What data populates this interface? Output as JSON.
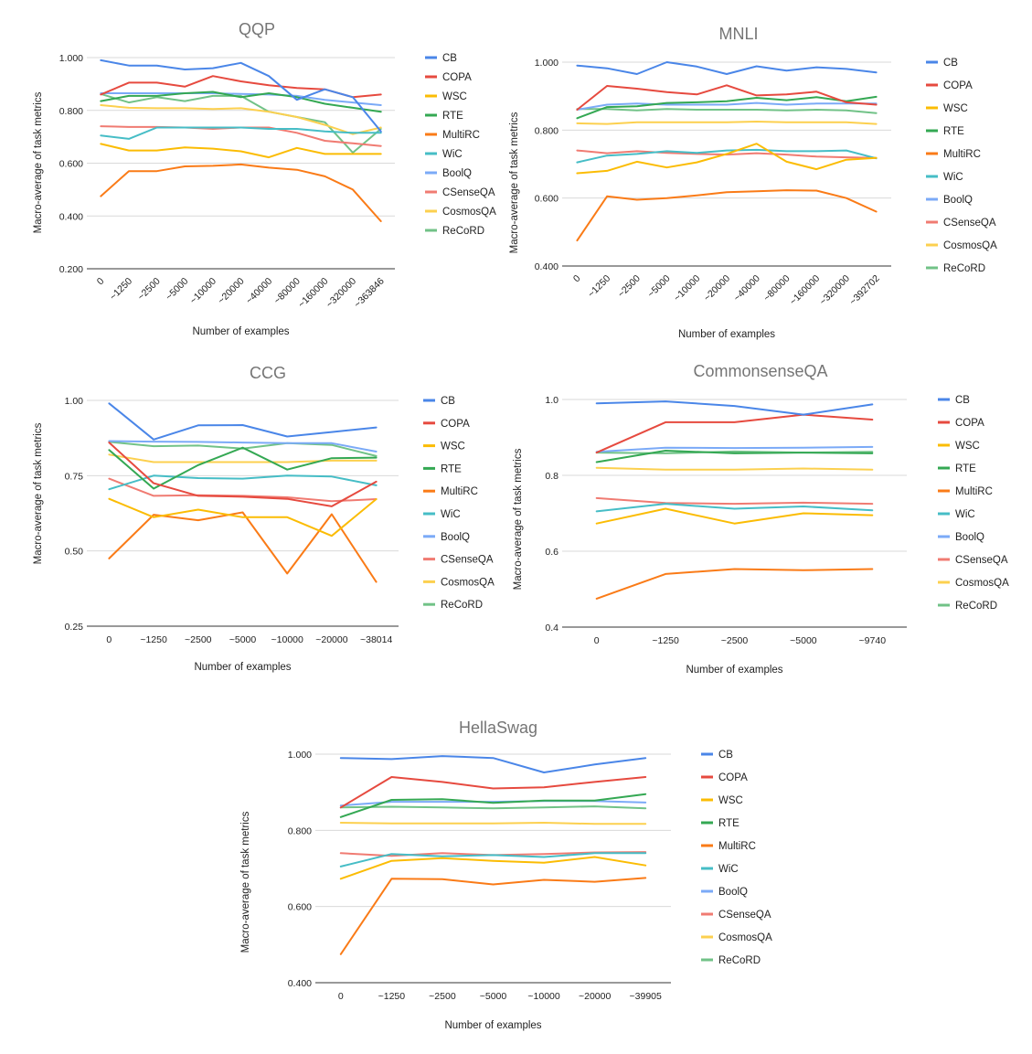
{
  "colors": {
    "CB": "#4a86e8",
    "COPA": "#e64a3f",
    "WSC": "#fbbc04",
    "RTE": "#34a853",
    "MultiRC": "#fa7b17",
    "WiC": "#46bdc6",
    "BoolQ": "#7baaf7",
    "CSenseQA": "#f07b72",
    "CosmosQA": "#fcd04f",
    "ReCoRD": "#71c287"
  },
  "chart_data": [
    {
      "id": "qqp",
      "type": "line",
      "title": "QQP",
      "xlabel": "Number of examples",
      "ylabel": "Macro-average of task metrics",
      "ylim": [
        0.2,
        1.0
      ],
      "yticks": [
        "0.200",
        "0.400",
        "0.600",
        "0.800",
        "1.000"
      ],
      "ytick_values": [
        0.2,
        0.4,
        0.6,
        0.8,
        1.0
      ],
      "xtick_rotated": true,
      "legend": "right",
      "categories": [
        "0",
        "~1250",
        "~2500",
        "~5000",
        "~10000",
        "~20000",
        "~40000",
        "~80000",
        "~160000",
        "~320000",
        "~363846"
      ],
      "series": [
        {
          "name": "CB",
          "values": [
            0.99,
            0.97,
            0.97,
            0.955,
            0.96,
            0.98,
            0.93,
            0.84,
            0.88,
            0.85,
            0.72
          ]
        },
        {
          "name": "COPA",
          "values": [
            0.86,
            0.905,
            0.905,
            0.89,
            0.93,
            0.91,
            0.895,
            0.885,
            0.88,
            0.85,
            0.86
          ]
        },
        {
          "name": "WSC",
          "values": [
            0.673,
            0.648,
            0.648,
            0.66,
            0.655,
            0.645,
            0.622,
            0.658,
            0.635,
            0.635,
            0.635
          ]
        },
        {
          "name": "RTE",
          "values": [
            0.835,
            0.855,
            0.855,
            0.865,
            0.87,
            0.85,
            0.865,
            0.85,
            0.825,
            0.81,
            0.795
          ]
        },
        {
          "name": "MultiRC",
          "values": [
            0.475,
            0.57,
            0.57,
            0.588,
            0.59,
            0.595,
            0.583,
            0.575,
            0.55,
            0.5,
            0.38
          ]
        },
        {
          "name": "WiC",
          "values": [
            0.705,
            0.692,
            0.735,
            0.735,
            0.735,
            0.735,
            0.73,
            0.73,
            0.72,
            0.715,
            0.715
          ]
        },
        {
          "name": "BoolQ",
          "values": [
            0.865,
            0.865,
            0.865,
            0.865,
            0.865,
            0.862,
            0.86,
            0.855,
            0.84,
            0.83,
            0.82
          ]
        },
        {
          "name": "CSenseQA",
          "values": [
            0.74,
            0.737,
            0.737,
            0.735,
            0.73,
            0.735,
            0.735,
            0.715,
            0.685,
            0.675,
            0.665
          ]
        },
        {
          "name": "CosmosQA",
          "values": [
            0.82,
            0.81,
            0.808,
            0.808,
            0.805,
            0.808,
            0.795,
            0.775,
            0.745,
            0.71,
            0.735
          ]
        },
        {
          "name": "ReCoRD",
          "values": [
            0.862,
            0.83,
            0.85,
            0.835,
            0.855,
            0.855,
            0.795,
            0.775,
            0.755,
            0.64,
            0.73
          ]
        }
      ]
    },
    {
      "id": "mnli",
      "type": "line",
      "title": "MNLI",
      "xlabel": "Number of examples",
      "ylabel": "Macro-average of task metrics",
      "ylim": [
        0.4,
        1.0
      ],
      "yticks": [
        "0.400",
        "0.600",
        "0.800",
        "1.000"
      ],
      "ytick_values": [
        0.4,
        0.6,
        0.8,
        1.0
      ],
      "xtick_rotated": true,
      "legend": "right",
      "categories": [
        "0",
        "~1250",
        "~2500",
        "~5000",
        "~10000",
        "~20000",
        "~40000",
        "~80000",
        "~160000",
        "~320000",
        "~392702"
      ],
      "series": [
        {
          "name": "CB",
          "values": [
            0.99,
            0.982,
            0.965,
            1.0,
            0.987,
            0.965,
            0.988,
            0.975,
            0.985,
            0.98,
            0.97
          ]
        },
        {
          "name": "COPA",
          "values": [
            0.86,
            0.93,
            0.922,
            0.912,
            0.905,
            0.932,
            0.902,
            0.905,
            0.913,
            0.882,
            0.875
          ]
        },
        {
          "name": "WSC",
          "values": [
            0.673,
            0.68,
            0.707,
            0.69,
            0.705,
            0.73,
            0.76,
            0.707,
            0.685,
            0.713,
            0.718
          ]
        },
        {
          "name": "RTE",
          "values": [
            0.835,
            0.868,
            0.87,
            0.88,
            0.882,
            0.885,
            0.895,
            0.888,
            0.897,
            0.885,
            0.898
          ]
        },
        {
          "name": "MultiRC",
          "values": [
            0.475,
            0.605,
            0.595,
            0.6,
            0.608,
            0.617,
            0.62,
            0.623,
            0.622,
            0.6,
            0.56
          ]
        },
        {
          "name": "WiC",
          "values": [
            0.705,
            0.725,
            0.73,
            0.738,
            0.733,
            0.74,
            0.742,
            0.738,
            0.738,
            0.74,
            0.717
          ]
        },
        {
          "name": "BoolQ",
          "values": [
            0.86,
            0.875,
            0.878,
            0.875,
            0.875,
            0.875,
            0.88,
            0.875,
            0.878,
            0.878,
            0.878
          ]
        },
        {
          "name": "CSenseQA",
          "values": [
            0.74,
            0.732,
            0.738,
            0.733,
            0.73,
            0.728,
            0.732,
            0.728,
            0.722,
            0.72,
            0.718
          ]
        },
        {
          "name": "CosmosQA",
          "values": [
            0.82,
            0.818,
            0.823,
            0.823,
            0.823,
            0.823,
            0.825,
            0.823,
            0.823,
            0.823,
            0.818
          ]
        },
        {
          "name": "ReCoRD",
          "values": [
            0.862,
            0.862,
            0.858,
            0.862,
            0.86,
            0.86,
            0.86,
            0.858,
            0.86,
            0.858,
            0.85
          ]
        }
      ]
    },
    {
      "id": "ccg",
      "type": "line",
      "title": "CCG",
      "xlabel": "Number of examples",
      "ylabel": "Macro-average of task metrics",
      "ylim": [
        0.25,
        1.0
      ],
      "yticks": [
        "0.25",
        "0.50",
        "0.75",
        "1.00"
      ],
      "ytick_values": [
        0.25,
        0.5,
        0.75,
        1.0
      ],
      "xtick_rotated": false,
      "legend": "right",
      "categories": [
        "0",
        "~1250",
        "~2500",
        "~5000",
        "~10000",
        "~20000",
        "~38014"
      ],
      "series": [
        {
          "name": "CB",
          "values": [
            0.99,
            0.87,
            0.917,
            0.918,
            0.88,
            0.895,
            0.91
          ]
        },
        {
          "name": "COPA",
          "values": [
            0.86,
            0.725,
            0.683,
            0.68,
            0.673,
            0.648,
            0.73
          ]
        },
        {
          "name": "WSC",
          "values": [
            0.673,
            0.612,
            0.637,
            0.612,
            0.612,
            0.55,
            0.672
          ]
        },
        {
          "name": "RTE",
          "values": [
            0.835,
            0.707,
            0.785,
            0.843,
            0.77,
            0.808,
            0.81
          ]
        },
        {
          "name": "MultiRC",
          "values": [
            0.475,
            0.62,
            0.602,
            0.628,
            0.425,
            0.622,
            0.397
          ]
        },
        {
          "name": "WiC",
          "values": [
            0.705,
            0.75,
            0.742,
            0.74,
            0.75,
            0.747,
            0.718
          ]
        },
        {
          "name": "BoolQ",
          "values": [
            0.865,
            0.863,
            0.862,
            0.86,
            0.858,
            0.858,
            0.83
          ]
        },
        {
          "name": "CSenseQA",
          "values": [
            0.74,
            0.683,
            0.685,
            0.683,
            0.678,
            0.665,
            0.672
          ]
        },
        {
          "name": "CosmosQA",
          "values": [
            0.82,
            0.795,
            0.795,
            0.795,
            0.795,
            0.8,
            0.8
          ]
        },
        {
          "name": "ReCoRD",
          "values": [
            0.862,
            0.848,
            0.85,
            0.84,
            0.858,
            0.852,
            0.815
          ]
        }
      ]
    },
    {
      "id": "commonsenseqa",
      "type": "line",
      "title": "CommonsenseQA",
      "xlabel": "Number of examples",
      "ylabel": "Macro-average of task metrics",
      "ylim": [
        0.4,
        1.0
      ],
      "yticks": [
        "0.4",
        "0.6",
        "0.8",
        "1.0"
      ],
      "ytick_values": [
        0.4,
        0.6,
        0.8,
        1.0
      ],
      "xtick_rotated": false,
      "legend": "right",
      "categories": [
        "0",
        "~1250",
        "~2500",
        "~5000",
        "~9740"
      ],
      "series": [
        {
          "name": "CB",
          "values": [
            0.99,
            0.995,
            0.983,
            0.96,
            0.987
          ]
        },
        {
          "name": "COPA",
          "values": [
            0.86,
            0.94,
            0.94,
            0.96,
            0.947
          ]
        },
        {
          "name": "WSC",
          "values": [
            0.673,
            0.712,
            0.673,
            0.7,
            0.695
          ]
        },
        {
          "name": "RTE",
          "values": [
            0.835,
            0.865,
            0.858,
            0.86,
            0.858
          ]
        },
        {
          "name": "MultiRC",
          "values": [
            0.475,
            0.54,
            0.553,
            0.55,
            0.553
          ]
        },
        {
          "name": "WiC",
          "values": [
            0.705,
            0.725,
            0.712,
            0.718,
            0.708
          ]
        },
        {
          "name": "BoolQ",
          "values": [
            0.862,
            0.873,
            0.872,
            0.873,
            0.875
          ]
        },
        {
          "name": "CSenseQA",
          "values": [
            0.74,
            0.727,
            0.725,
            0.728,
            0.725
          ]
        },
        {
          "name": "CosmosQA",
          "values": [
            0.82,
            0.815,
            0.815,
            0.818,
            0.815
          ]
        },
        {
          "name": "ReCoRD",
          "values": [
            0.86,
            0.858,
            0.863,
            0.86,
            0.862
          ]
        }
      ]
    },
    {
      "id": "hellaswag",
      "type": "line",
      "title": "HellaSwag",
      "xlabel": "Number of examples",
      "ylabel": "Macro-average of task metrics",
      "ylim": [
        0.4,
        1.0
      ],
      "yticks": [
        "0.400",
        "0.600",
        "0.800",
        "1.000"
      ],
      "ytick_values": [
        0.4,
        0.6,
        0.8,
        1.0
      ],
      "xtick_rotated": false,
      "legend": "right",
      "categories": [
        "0",
        "~1250",
        "~2500",
        "~5000",
        "~10000",
        "~20000",
        "~39905"
      ],
      "series": [
        {
          "name": "CB",
          "values": [
            0.99,
            0.987,
            0.995,
            0.99,
            0.952,
            0.973,
            0.99
          ]
        },
        {
          "name": "COPA",
          "values": [
            0.86,
            0.94,
            0.927,
            0.91,
            0.913,
            0.927,
            0.94
          ]
        },
        {
          "name": "WSC",
          "values": [
            0.673,
            0.72,
            0.727,
            0.72,
            0.715,
            0.73,
            0.708
          ]
        },
        {
          "name": "RTE",
          "values": [
            0.835,
            0.88,
            0.882,
            0.872,
            0.878,
            0.878,
            0.895
          ]
        },
        {
          "name": "MultiRC",
          "values": [
            0.475,
            0.673,
            0.672,
            0.658,
            0.67,
            0.665,
            0.675
          ]
        },
        {
          "name": "WiC",
          "values": [
            0.705,
            0.738,
            0.732,
            0.735,
            0.73,
            0.74,
            0.74
          ]
        },
        {
          "name": "BoolQ",
          "values": [
            0.865,
            0.875,
            0.875,
            0.875,
            0.877,
            0.877,
            0.873
          ]
        },
        {
          "name": "CSenseQA",
          "values": [
            0.74,
            0.733,
            0.74,
            0.735,
            0.738,
            0.742,
            0.743
          ]
        },
        {
          "name": "CosmosQA",
          "values": [
            0.82,
            0.818,
            0.818,
            0.818,
            0.82,
            0.817,
            0.817
          ]
        },
        {
          "name": "ReCoRD",
          "values": [
            0.86,
            0.862,
            0.86,
            0.858,
            0.86,
            0.863,
            0.858
          ]
        }
      ]
    }
  ]
}
